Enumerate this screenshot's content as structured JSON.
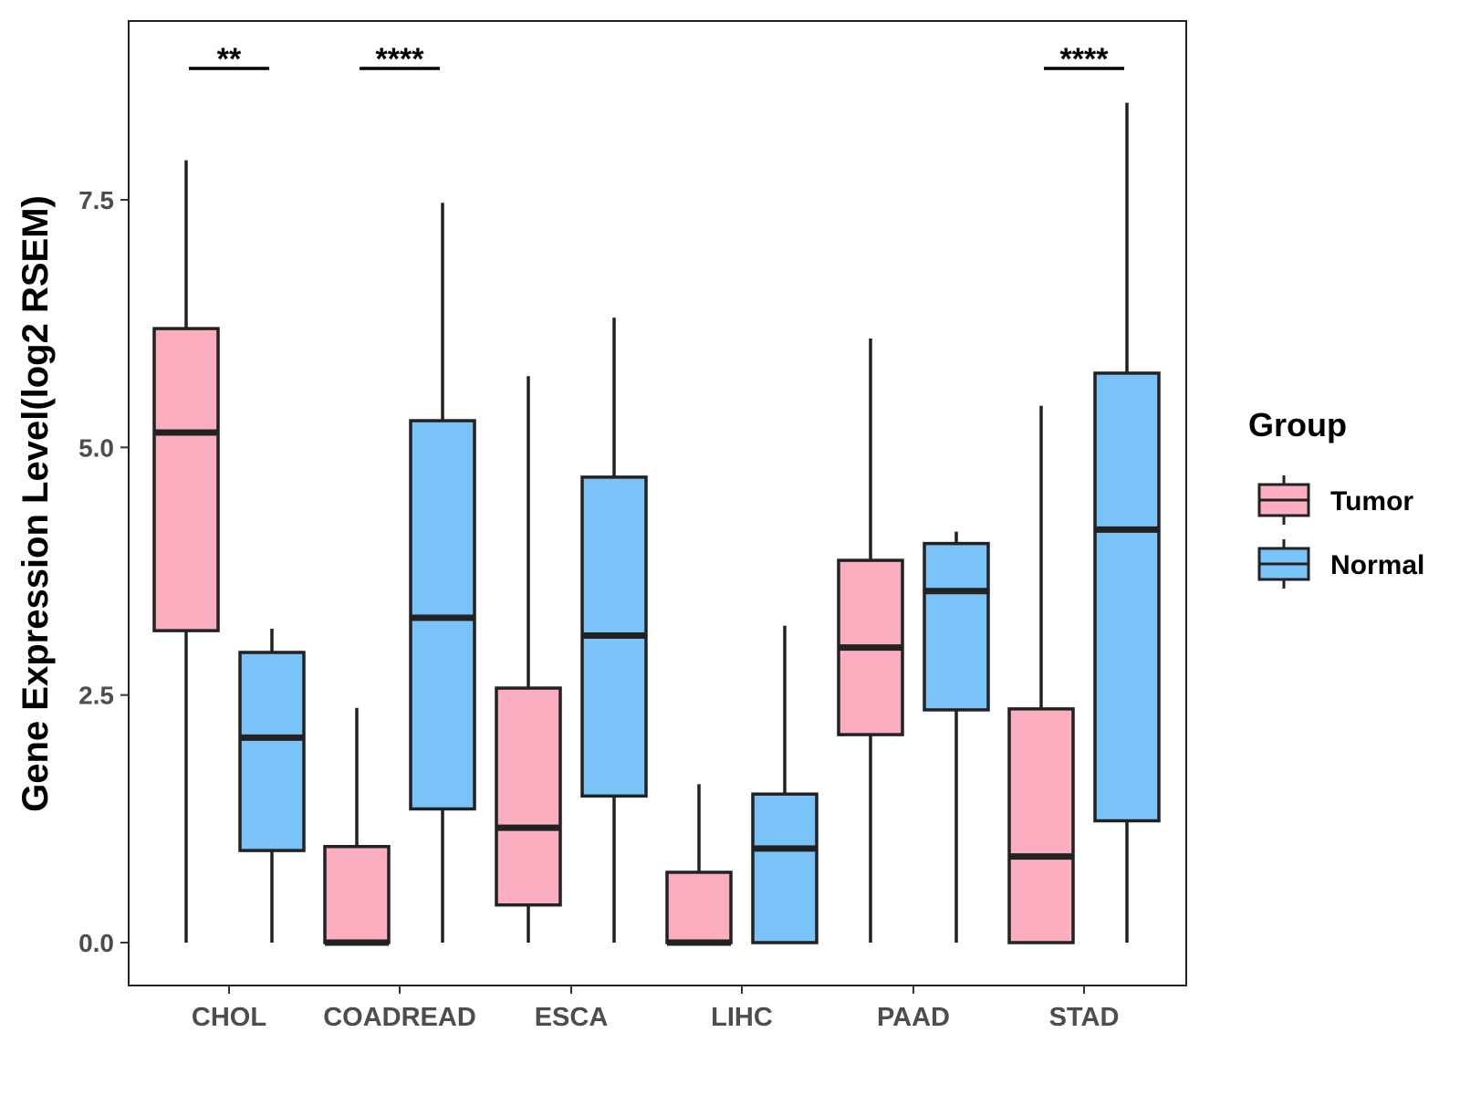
{
  "chart_data": {
    "type": "boxplot",
    "title": "",
    "xlabel": "",
    "ylabel": "Gene Expression Level(log2 RSEM)",
    "ylim": [
      -0.45,
      9.3
    ],
    "yticks": [
      0.0,
      2.5,
      5.0,
      7.5
    ],
    "ytick_labels": [
      "0.0",
      "2.5",
      "5.0",
      "7.5"
    ],
    "categories": [
      "CHOL",
      "COADREAD",
      "ESCA",
      "LIHC",
      "PAAD",
      "STAD"
    ],
    "legend": {
      "title": "Group",
      "position": "right",
      "entries": [
        {
          "name": "Tumor",
          "color": "#fbaec0"
        },
        {
          "name": "Normal",
          "color": "#79c3f9"
        }
      ]
    },
    "colors": {
      "Tumor": "#fbaec0",
      "Normal": "#79c3f9",
      "stroke": "#222222"
    },
    "series": [
      {
        "name": "Tumor",
        "boxes": [
          {
            "category": "CHOL",
            "min": 0.0,
            "q1": 3.15,
            "median": 5.15,
            "q3": 6.2,
            "max": 7.9
          },
          {
            "category": "COADREAD",
            "min": 0.0,
            "q1": 0.0,
            "median": 0.0,
            "q3": 0.97,
            "max": 2.37
          },
          {
            "category": "ESCA",
            "min": 0.0,
            "q1": 0.38,
            "median": 1.16,
            "q3": 2.57,
            "max": 5.72
          },
          {
            "category": "LIHC",
            "min": 0.0,
            "q1": 0.0,
            "median": 0.0,
            "q3": 0.71,
            "max": 1.6
          },
          {
            "category": "PAAD",
            "min": 0.0,
            "q1": 2.1,
            "median": 2.98,
            "q3": 3.86,
            "max": 6.1
          },
          {
            "category": "STAD",
            "min": 0.0,
            "q1": 0.0,
            "median": 0.87,
            "q3": 2.36,
            "max": 5.42
          }
        ]
      },
      {
        "name": "Normal",
        "boxes": [
          {
            "category": "CHOL",
            "min": 0.0,
            "q1": 0.93,
            "median": 2.07,
            "q3": 2.93,
            "max": 3.17
          },
          {
            "category": "COADREAD",
            "min": 0.0,
            "q1": 1.35,
            "median": 3.28,
            "q3": 5.27,
            "max": 7.47
          },
          {
            "category": "ESCA",
            "min": 0.0,
            "q1": 1.48,
            "median": 3.1,
            "q3": 4.7,
            "max": 6.31
          },
          {
            "category": "LIHC",
            "min": 0.0,
            "q1": 0.0,
            "median": 0.95,
            "q3": 1.5,
            "max": 3.2
          },
          {
            "category": "PAAD",
            "min": 0.0,
            "q1": 2.35,
            "median": 3.55,
            "q3": 4.03,
            "max": 4.15
          },
          {
            "category": "STAD",
            "min": 0.0,
            "q1": 1.23,
            "median": 4.17,
            "q3": 5.75,
            "max": 8.48
          }
        ]
      }
    ],
    "significance": [
      {
        "category": "CHOL",
        "label": "**"
      },
      {
        "category": "COADREAD",
        "label": "****"
      },
      {
        "category": "STAD",
        "label": "****"
      }
    ]
  }
}
